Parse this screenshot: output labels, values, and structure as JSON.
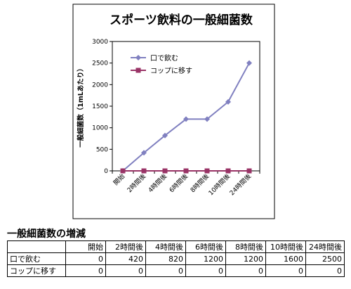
{
  "chart_data": {
    "type": "line",
    "title": "スポーツ飲料の一般細菌数",
    "ylabel": "一般細菌数（1mLあたり）",
    "xlabel": "",
    "categories": [
      "開始",
      "2時間後",
      "4時間後",
      "6時間後",
      "8時間後",
      "10時間後",
      "24時間後"
    ],
    "ylim": [
      0,
      3000
    ],
    "yticks": [
      0,
      500,
      1000,
      1500,
      2000,
      2500,
      3000
    ],
    "grid": false,
    "legend_position": "top-left",
    "series": [
      {
        "name": "口で飲む",
        "values": [
          0,
          420,
          820,
          1200,
          1200,
          1600,
          2500
        ],
        "color": "#8080c0",
        "marker": "diamond"
      },
      {
        "name": "コップに移す",
        "values": [
          0,
          0,
          0,
          0,
          0,
          0,
          0
        ],
        "color": "#993366",
        "marker": "square"
      }
    ]
  },
  "table": {
    "title": "一般細菌数の増減",
    "corner": "",
    "columns": [
      "開始",
      "2時間後",
      "4時間後",
      "6時間後",
      "8時間後",
      "10時間後",
      "24時間後"
    ],
    "rows": [
      {
        "label": "口で飲む",
        "values": [
          "0",
          "420",
          "820",
          "1200",
          "1200",
          "1600",
          "2500"
        ]
      },
      {
        "label": "コップに移す",
        "values": [
          "0",
          "0",
          "0",
          "0",
          "0",
          "0",
          "0"
        ]
      }
    ]
  }
}
